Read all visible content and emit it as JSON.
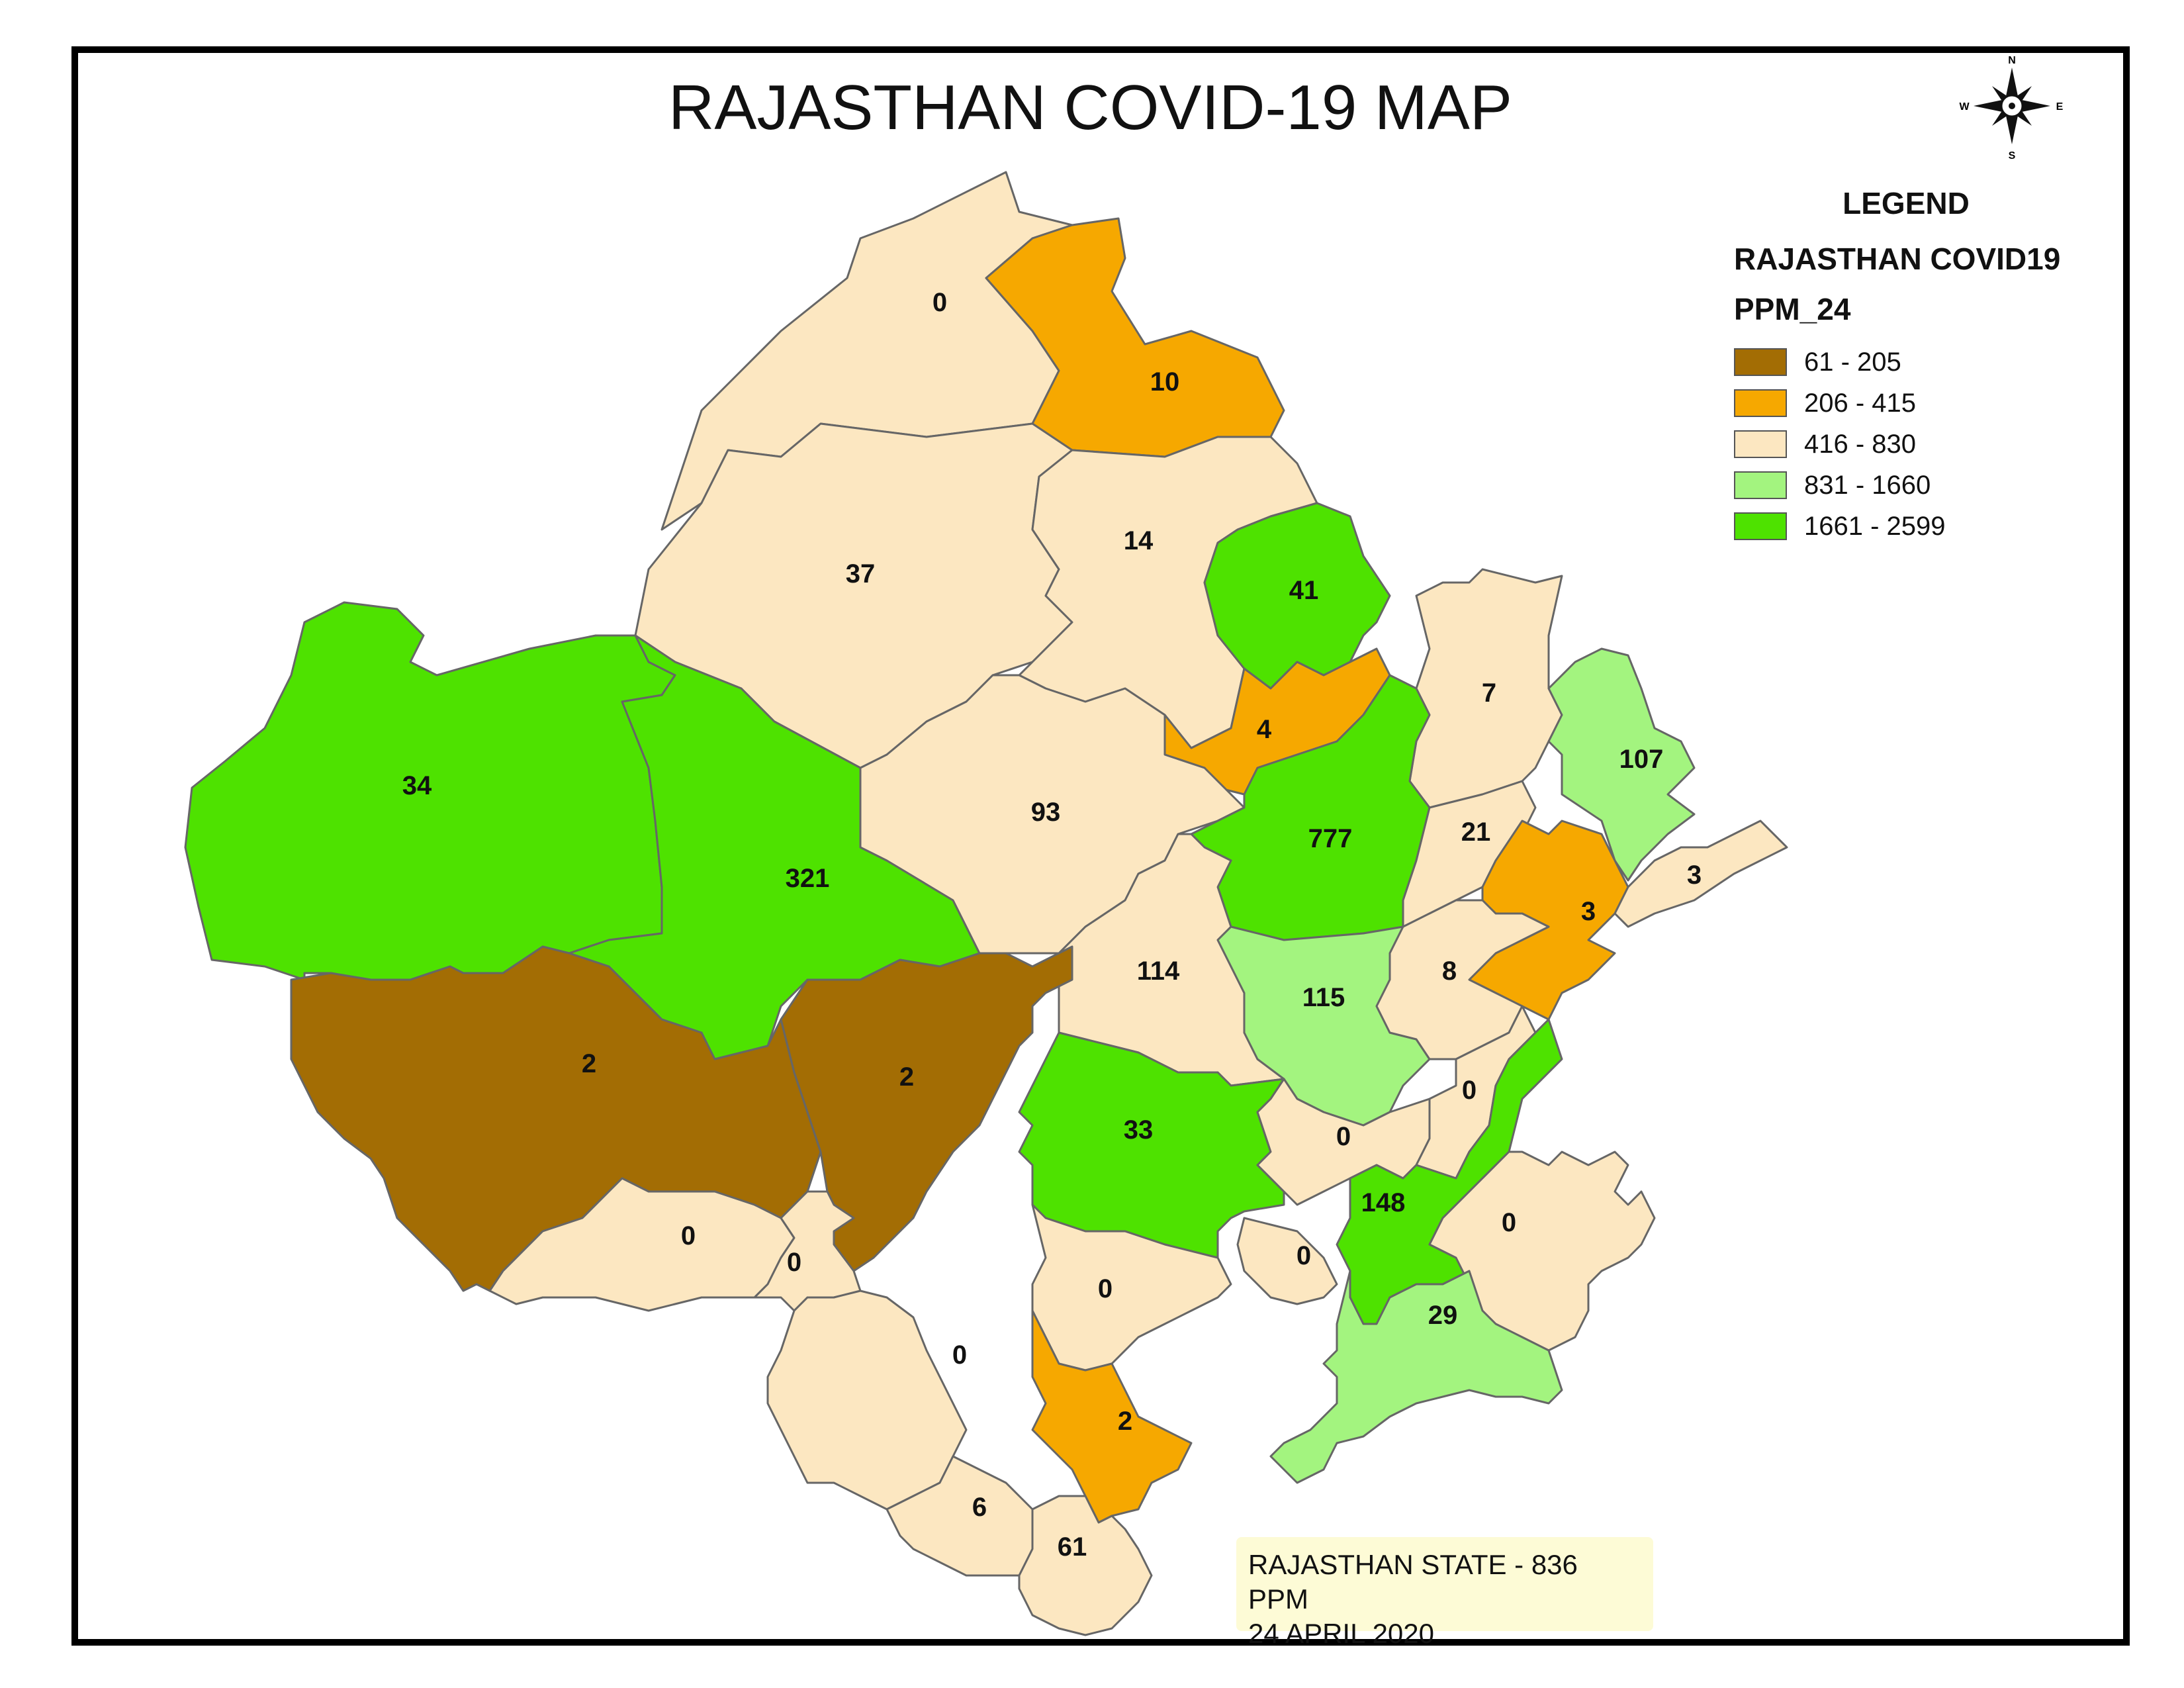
{
  "title": "RAJASTHAN COVID-19 MAP",
  "compass": {
    "n": "N",
    "s": "S",
    "e": "E",
    "w": "W"
  },
  "legend": {
    "heading": "LEGEND",
    "layer": "RAJASTHAN COVID19",
    "field": "PPM_24",
    "classes": [
      {
        "label": "61 - 205",
        "color": "#a36d04"
      },
      {
        "label": "206 - 415",
        "color": "#f6a800"
      },
      {
        "label": "416 - 830",
        "color": "#fce7c1"
      },
      {
        "label": "831 - 1660",
        "color": "#a3f47f"
      },
      {
        "label": "1661 - 2599",
        "color": "#4ee200"
      }
    ]
  },
  "districts": [
    {
      "value": "0",
      "class": 2
    },
    {
      "value": "10",
      "class": 1
    },
    {
      "value": "37",
      "class": 2
    },
    {
      "value": "14",
      "class": 2
    },
    {
      "value": "41",
      "class": 4
    },
    {
      "value": "4",
      "class": 1
    },
    {
      "value": "7",
      "class": 2
    },
    {
      "value": "107",
      "class": 3
    },
    {
      "value": "34",
      "class": 4
    },
    {
      "value": "321",
      "class": 4
    },
    {
      "value": "93",
      "class": 2
    },
    {
      "value": "777",
      "class": 4
    },
    {
      "value": "21",
      "class": 2
    },
    {
      "value": "3",
      "class": 1
    },
    {
      "value": "3",
      "class": 2
    },
    {
      "value": "114",
      "class": 2
    },
    {
      "value": "115",
      "class": 3
    },
    {
      "value": "8",
      "class": 2
    },
    {
      "value": "2",
      "class": 0
    },
    {
      "value": "2",
      "class": 0
    },
    {
      "value": "33",
      "class": 4
    },
    {
      "value": "0",
      "class": 2
    },
    {
      "value": "0",
      "class": 2
    },
    {
      "value": "148",
      "class": 4
    },
    {
      "value": "0",
      "class": 2
    },
    {
      "value": "0",
      "class": 2
    },
    {
      "value": "0",
      "class": 2
    },
    {
      "value": "0",
      "class": 2
    },
    {
      "value": "0",
      "class": 2
    },
    {
      "value": "29",
      "class": 3
    },
    {
      "value": "0",
      "class": 2
    },
    {
      "value": "2",
      "class": 1
    },
    {
      "value": "6",
      "class": 2
    },
    {
      "value": "61",
      "class": 2
    }
  ],
  "note": {
    "line1": "RAJASTHAN STATE - 836 PPM",
    "line2": "24 APRIL 2020"
  }
}
